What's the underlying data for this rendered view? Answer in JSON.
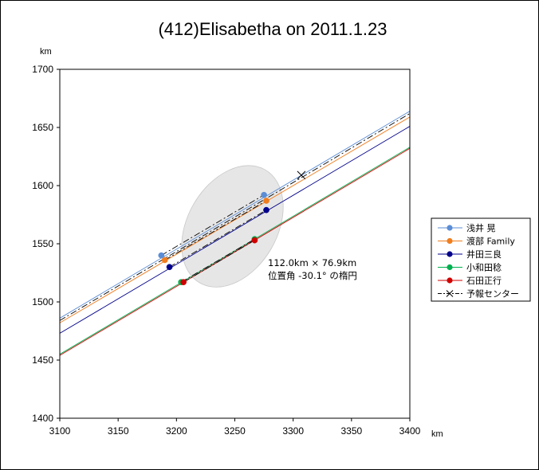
{
  "chart_data": {
    "type": "line",
    "title": "(412)Elisabetha on 2011.1.23",
    "xlabel": "km",
    "ylabel": "km",
    "xlim": [
      3100,
      3400
    ],
    "ylim": [
      1400,
      1700
    ],
    "xticks": [
      "3100",
      "3150",
      "3200",
      "3250",
      "3300",
      "3350",
      "3400"
    ],
    "yticks": [
      "1400",
      "1450",
      "1500",
      "1550",
      "1600",
      "1650",
      "1700"
    ],
    "grid": false,
    "legend_position": "right",
    "series": [
      {
        "name": "浅井 晃",
        "color": "#5b8dd6",
        "line": [
          [
            3100,
            1486
          ],
          [
            3400,
            1664
          ]
        ],
        "points": [
          [
            3187,
            1540
          ],
          [
            3275,
            1592
          ]
        ]
      },
      {
        "name": "渡部 Family",
        "color": "#f07d1e",
        "line": [
          [
            3100,
            1482
          ],
          [
            3400,
            1659
          ]
        ],
        "points": [
          [
            3190,
            1536
          ],
          [
            3277,
            1587
          ]
        ]
      },
      {
        "name": "井田三良",
        "color": "#00008b",
        "line": [
          [
            3100,
            1473
          ],
          [
            3400,
            1651
          ]
        ],
        "points": [
          [
            3194,
            1530
          ],
          [
            3277,
            1579
          ]
        ]
      },
      {
        "name": "小和田稔",
        "color": "#00b050",
        "line": [
          [
            3100,
            1455
          ],
          [
            3400,
            1633
          ]
        ],
        "points": [
          [
            3204,
            1517
          ],
          [
            3267,
            1554
          ]
        ]
      },
      {
        "name": "石田正行",
        "color": "#d00000",
        "line": [
          [
            3100,
            1454
          ],
          [
            3400,
            1632
          ]
        ],
        "points": [
          [
            3206,
            1517
          ],
          [
            3267,
            1553
          ]
        ]
      },
      {
        "name": "予報センター",
        "color": "#000000",
        "dashed": true,
        "line": [
          [
            3100,
            1484
          ],
          [
            3400,
            1662
          ]
        ],
        "marker": [
          3307,
          1609
        ]
      }
    ],
    "ellipse": {
      "center": [
        3248,
        1565
      ],
      "major_axis_km": 112.0,
      "minor_axis_km": 76.9,
      "position_angle_deg": -30.1,
      "fill": "#e6e6e6"
    },
    "annotation": {
      "line1": "112.0km × 76.9km",
      "line2": "位置角 -30.1°  の楕円"
    }
  }
}
